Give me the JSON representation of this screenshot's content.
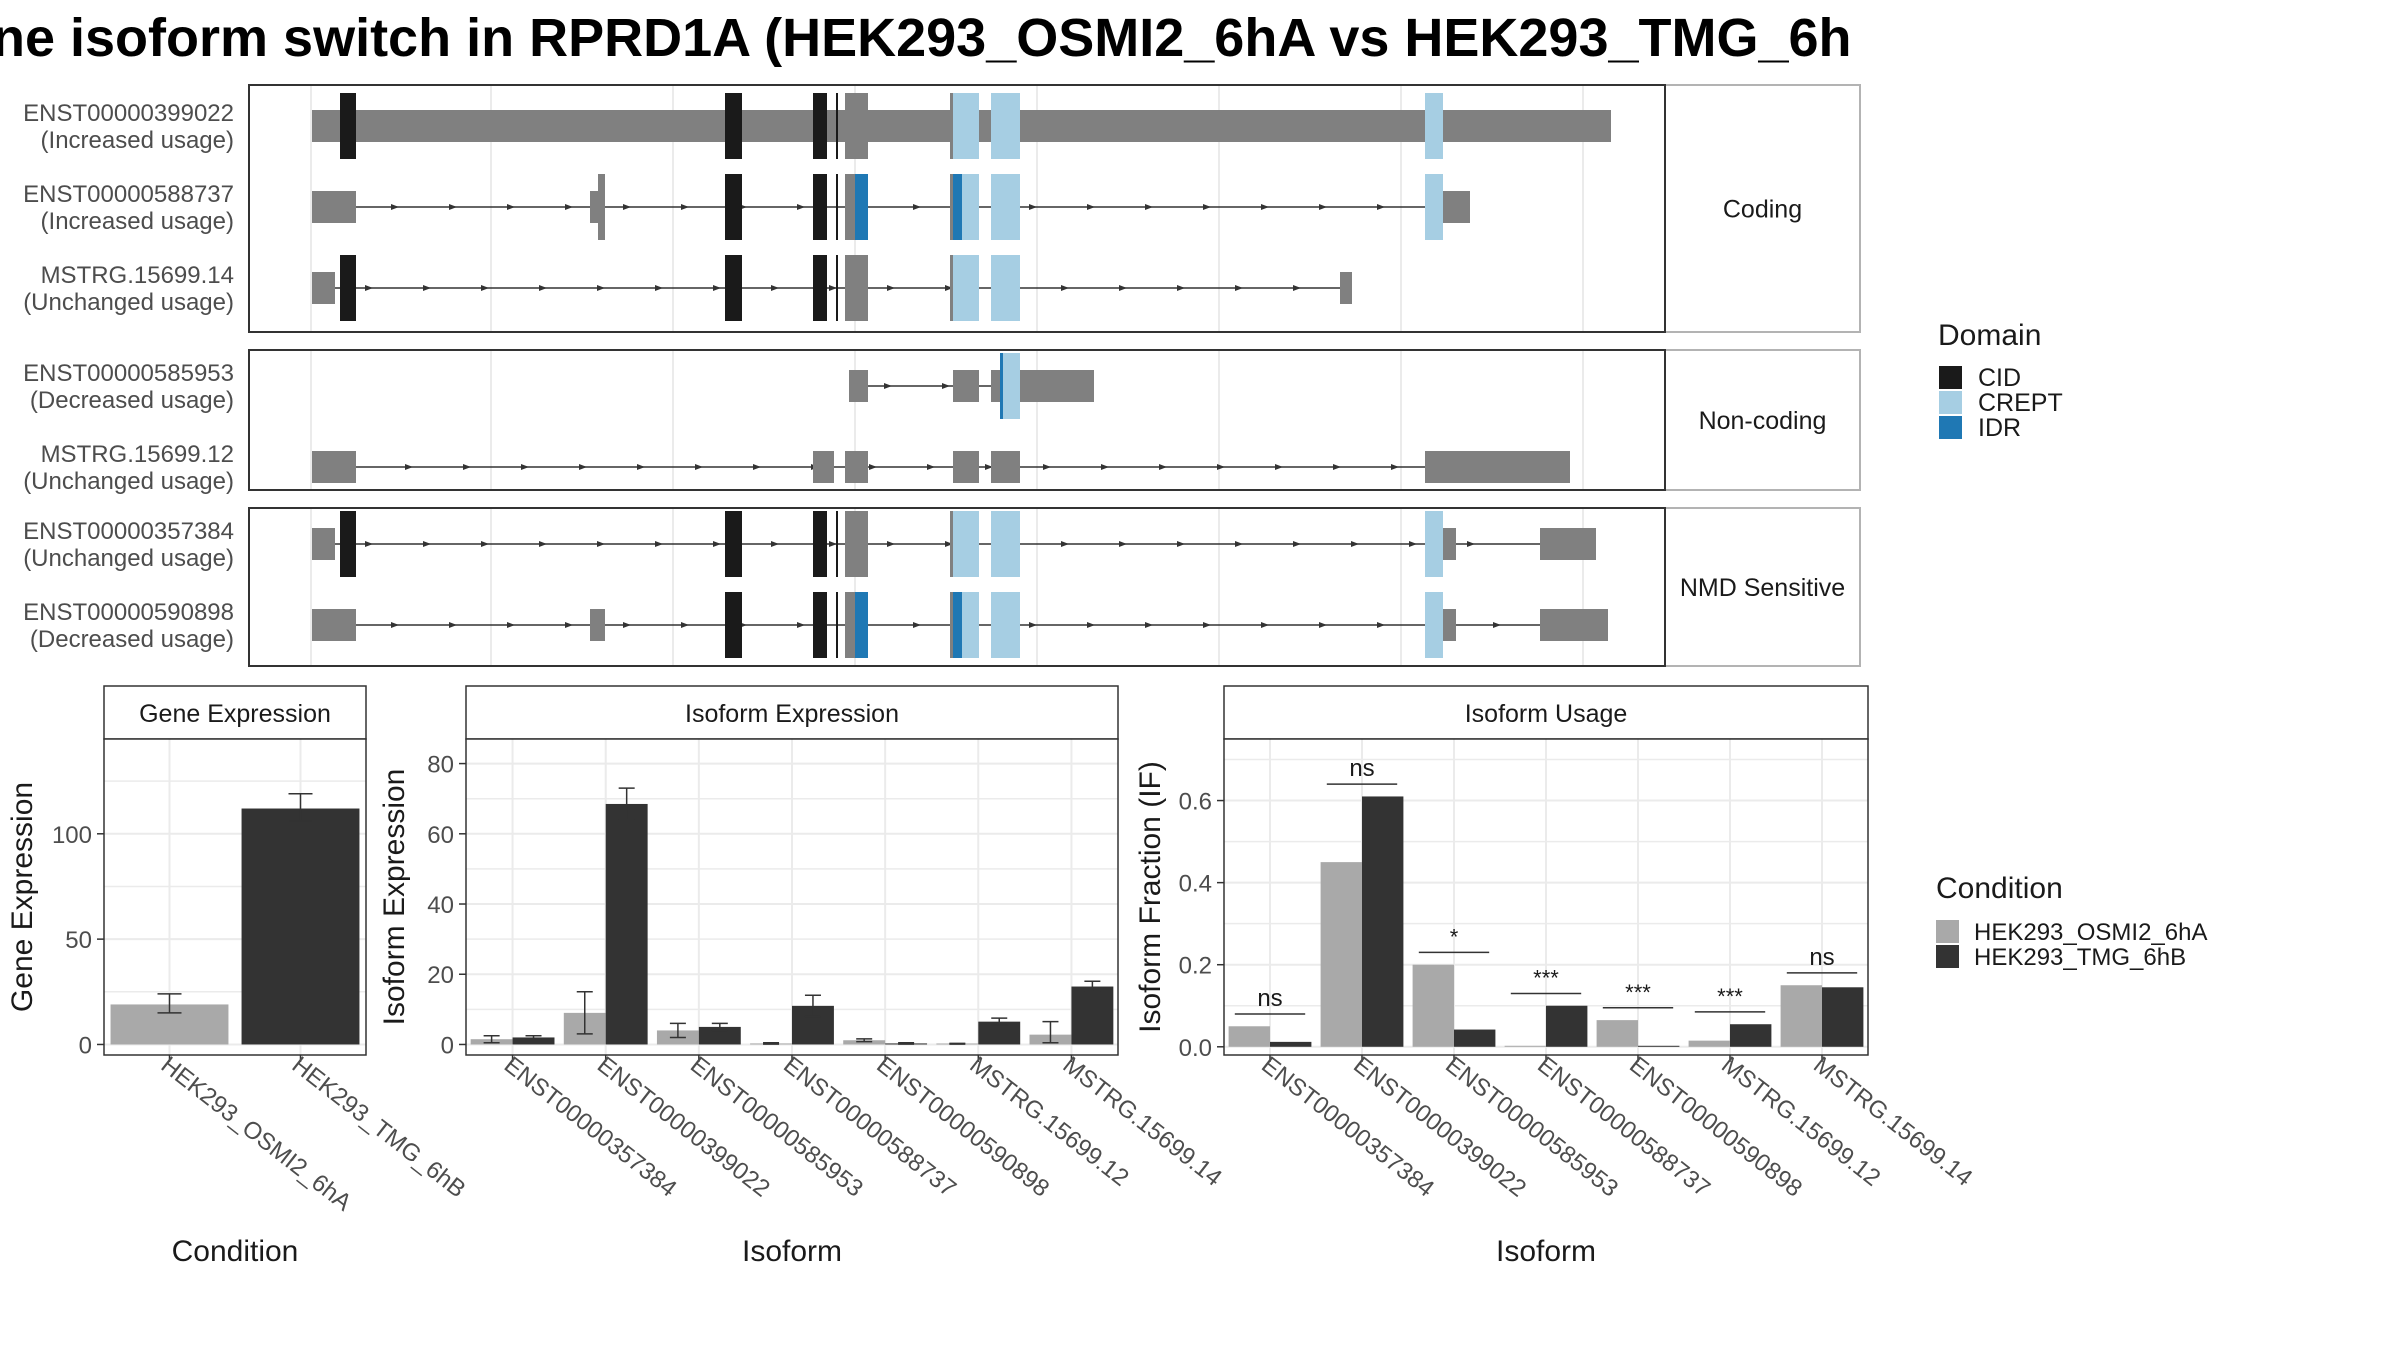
{
  "title": "ne isoform switch in RPRD1A (HEK293_OSMI2_6hA vs HEK293_TMG_6h",
  "colors": {
    "exon": "#808080",
    "CID": "#1a1a1a",
    "CREPT": "#a6cee3",
    "IDR": "#1f78b4",
    "cond1": "#a9a9a9",
    "cond2": "#333333",
    "panel_border": "#333333",
    "strip_fill": "#ffffff",
    "grid": "#ebebeb"
  },
  "structure": {
    "legend_title": "Domain",
    "legend": [
      "CID",
      "CREPT",
      "IDR"
    ],
    "groups": [
      {
        "name": "Coding",
        "isoforms": [
          {
            "id": "ENST00000399022",
            "usage": "(Increased usage)"
          },
          {
            "id": "ENST00000588737",
            "usage": "(Increased usage)"
          },
          {
            "id": "MSTRG.15699.14",
            "usage": "(Unchanged usage)"
          }
        ]
      },
      {
        "name": "Non-coding",
        "isoforms": [
          {
            "id": "ENST00000585953",
            "usage": "(Decreased usage)"
          },
          {
            "id": "MSTRG.15699.12",
            "usage": "(Unchanged usage)"
          }
        ]
      },
      {
        "name": "NMD Sensitive",
        "isoforms": [
          {
            "id": "ENST00000357384",
            "usage": "(Unchanged usage)"
          },
          {
            "id": "ENST00000590898",
            "usage": "(Decreased usage)"
          }
        ]
      }
    ]
  },
  "condition_legend": {
    "title": "Condition",
    "items": [
      "HEK293_OSMI2_6hA",
      "HEK293_TMG_6hB"
    ]
  },
  "chart_data": [
    {
      "type": "bar",
      "title": "Gene Expression",
      "xlabel": "Condition",
      "ylabel": "Gene Expression",
      "ylim": [
        -5,
        145
      ],
      "yticks": [
        0,
        50,
        100
      ],
      "categories": [
        "HEK293_OSMI2_6hA",
        "HEK293_TMG_6hB"
      ],
      "values": [
        19,
        112
      ],
      "errors": [
        [
          15,
          24
        ],
        [
          106,
          119
        ]
      ],
      "grid": true
    },
    {
      "type": "bar",
      "title": "Isoform Expression",
      "xlabel": "Isoform",
      "ylabel": "Isoform Expression",
      "ylim": [
        -3,
        87
      ],
      "yticks": [
        0,
        20,
        40,
        60,
        80
      ],
      "categories": [
        "ENST00000357384",
        "ENST00000399022",
        "ENST00000585953",
        "ENST00000588737",
        "ENST00000590898",
        "MSTRG.15699.12",
        "MSTRG.15699.14"
      ],
      "series": [
        {
          "name": "HEK293_OSMI2_6hA",
          "values": [
            1.5,
            9,
            4,
            0.3,
            1.2,
            0.2,
            2.8
          ],
          "errors": [
            [
              0.5,
              2.5
            ],
            [
              3,
              15
            ],
            [
              2,
              6
            ],
            [
              0.1,
              0.5
            ],
            [
              0.8,
              1.6
            ],
            [
              0.1,
              0.3
            ],
            [
              0.5,
              6.5
            ]
          ]
        },
        {
          "name": "HEK293_TMG_6hB",
          "values": [
            2,
            68.5,
            5,
            11,
            0.3,
            6.5,
            16.5
          ],
          "errors": [
            [
              1.5,
              2.5
            ],
            [
              64,
              73
            ],
            [
              4,
              6
            ],
            [
              8,
              14
            ],
            [
              0.1,
              0.5
            ],
            [
              5.5,
              7.5
            ],
            [
              15,
              18
            ]
          ]
        }
      ],
      "grid": true
    },
    {
      "type": "bar",
      "title": "Isoform Usage",
      "xlabel": "Isoform",
      "ylabel": "Isoform Fraction (IF)",
      "ylim": [
        -0.02,
        0.75
      ],
      "yticks": [
        0.0,
        0.2,
        0.4,
        0.6
      ],
      "categories": [
        "ENST00000357384",
        "ENST00000399022",
        "ENST00000585953",
        "ENST00000588737",
        "ENST00000590898",
        "MSTRG.15699.12",
        "MSTRG.15699.14"
      ],
      "series": [
        {
          "name": "HEK293_OSMI2_6hA",
          "values": [
            0.05,
            0.45,
            0.2,
            0.0,
            0.065,
            0.015,
            0.15
          ]
        },
        {
          "name": "HEK293_TMG_6hB",
          "values": [
            0.012,
            0.61,
            0.042,
            0.1,
            0.0,
            0.055,
            0.145
          ]
        }
      ],
      "significance": [
        "ns",
        "ns",
        "*",
        "***",
        "***",
        "***",
        "ns"
      ],
      "grid": true
    }
  ]
}
